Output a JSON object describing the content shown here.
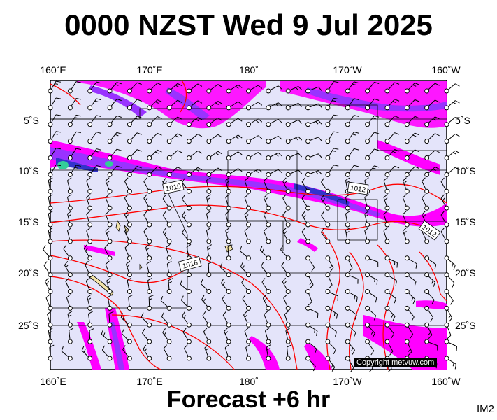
{
  "title": "0000 NZST Wed 9 Jul 2025",
  "footer": "Forecast +6 hr",
  "corner_label": "IM2",
  "copyright": "Copyright metvuw.com",
  "lon_labels": [
    "160˚E",
    "170˚E",
    "180˚",
    "170˚W",
    "160˚W"
  ],
  "lat_labels": [
    "5˚S",
    "10˚S",
    "15˚S",
    "20˚S",
    "25˚S"
  ],
  "isobar_labels": [
    "1010",
    "1016",
    "1012",
    "1012"
  ],
  "colors": {
    "background": "#e4e4fa",
    "isobar": "#ff0000",
    "rain_light": "#ff00ff",
    "rain_medium": "#9933ff",
    "rain_heavy": "#3333cc",
    "rain_extreme": "#33cc99"
  }
}
